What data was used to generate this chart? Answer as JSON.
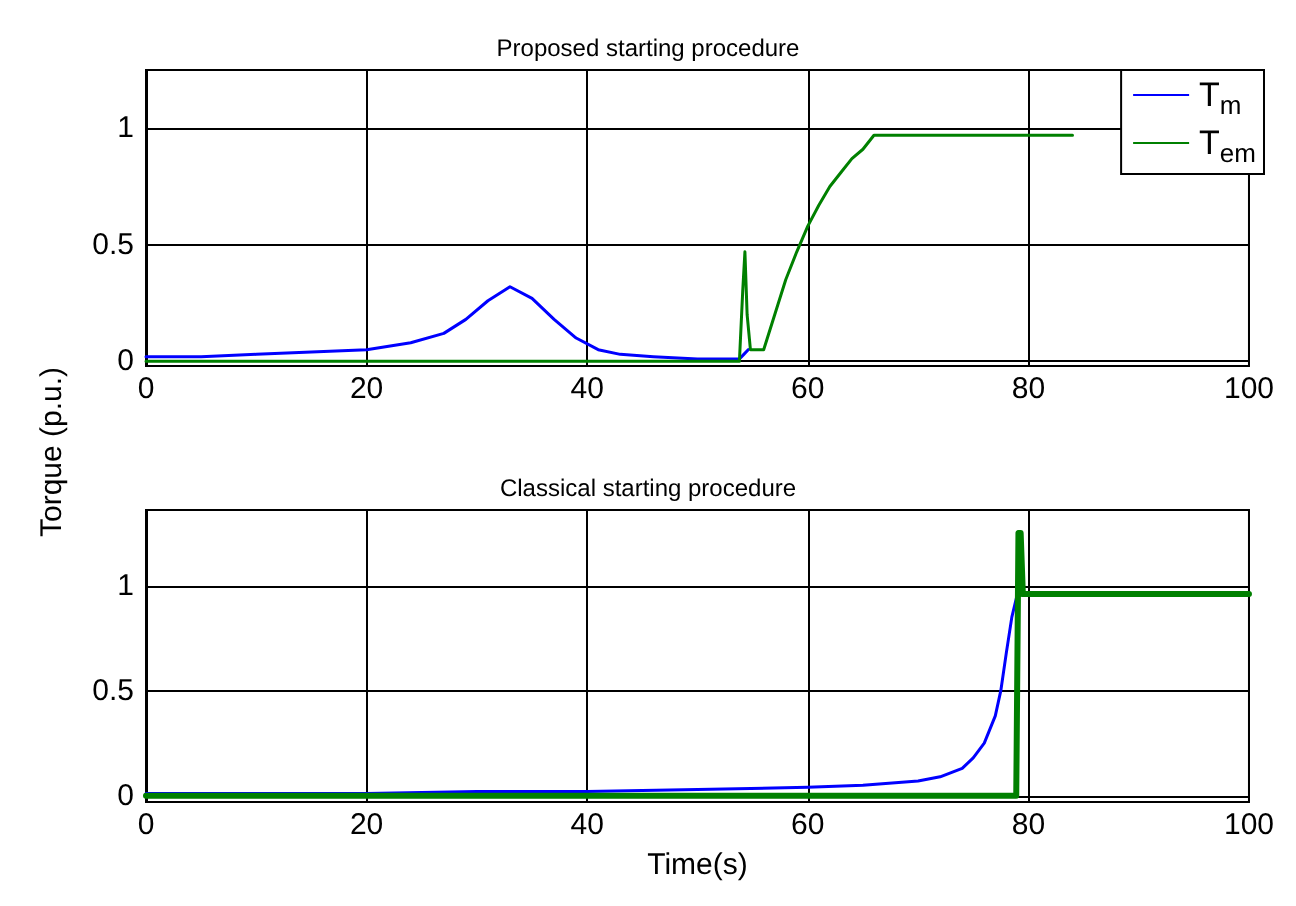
{
  "chart_data": [
    {
      "type": "line",
      "title": "Proposed starting procedure",
      "ylabel": "Torque (p.u.)",
      "xlim": [
        0,
        100
      ],
      "xticks": [
        0,
        20,
        40,
        60,
        80,
        100
      ],
      "ylim": [
        -0.02,
        1.25
      ],
      "yticks": [
        0,
        0.5,
        1
      ],
      "grid": true,
      "legend": "top right",
      "line_style": "solid",
      "marker": "none",
      "series": [
        {
          "name": "T$_{m}$",
          "color": "#0000ff",
          "x": [
            0,
            5,
            10,
            15,
            20,
            24,
            27,
            29,
            31,
            33,
            35,
            37,
            39,
            41,
            43,
            46,
            50,
            53.8,
            54.2,
            54.6
          ],
          "values": [
            0.02,
            0.02,
            0.03,
            0.04,
            0.05,
            0.08,
            0.12,
            0.18,
            0.26,
            0.32,
            0.27,
            0.18,
            0.1,
            0.05,
            0.03,
            0.02,
            0.01,
            0.01,
            0.03,
            0.05
          ]
        },
        {
          "name": "T$_{em}$",
          "color": "#008000",
          "x": [
            0,
            20,
            40,
            53.8,
            54.1,
            54.3,
            54.5,
            54.8,
            56,
            57,
            58,
            59,
            60,
            61,
            62,
            63,
            64,
            65,
            66,
            70,
            84
          ],
          "values": [
            0,
            0,
            0,
            0,
            0.3,
            0.47,
            0.2,
            0.05,
            0.05,
            0.2,
            0.35,
            0.47,
            0.58,
            0.67,
            0.75,
            0.81,
            0.87,
            0.91,
            0.97,
            0.97,
            0.97
          ]
        }
      ]
    },
    {
      "type": "line",
      "title": "Classical starting procedure",
      "xlabel": "Time(s)",
      "xlim": [
        0,
        100
      ],
      "xticks": [
        0,
        20,
        40,
        60,
        80,
        100
      ],
      "ylim": [
        -0.03,
        1.36
      ],
      "yticks": [
        0,
        0.5,
        1
      ],
      "grid": true,
      "legend": false,
      "line_style": "solid",
      "marker": "none",
      "series": [
        {
          "color": "#0000ff",
          "x": [
            0,
            20,
            30,
            40,
            50,
            60,
            65,
            70,
            72,
            74,
            75,
            76,
            77,
            77.5,
            78,
            78.5,
            79
          ],
          "values": [
            0.01,
            0.01,
            0.02,
            0.02,
            0.03,
            0.04,
            0.05,
            0.07,
            0.09,
            0.13,
            0.18,
            0.25,
            0.38,
            0.5,
            0.68,
            0.85,
            0.96
          ]
        },
        {
          "color": "#008000",
          "x": [
            0,
            20,
            40,
            60,
            78.9,
            79.1,
            79.3,
            79.5,
            80,
            90,
            100
          ],
          "values": [
            0,
            0,
            0,
            0,
            0,
            1.25,
            1.25,
            0.96,
            0.96,
            0.96,
            0.96
          ]
        }
      ]
    }
  ]
}
